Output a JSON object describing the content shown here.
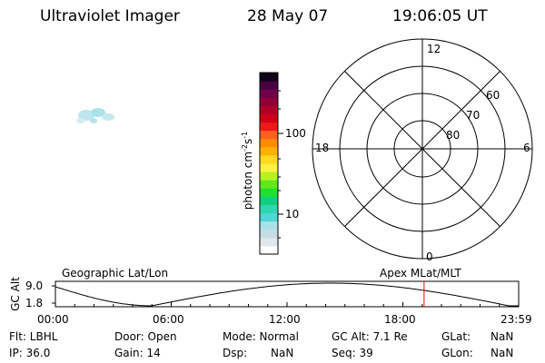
{
  "header": {
    "title": "Ultraviolet Imager",
    "date": "28 May 07",
    "time": "19:06:05 UT"
  },
  "colorbar": {
    "label": "photon cm⁻²s⁻¹",
    "label_base": "photon cm",
    "label_exp1": "-2",
    "label_mid": "s",
    "label_exp2": "-1",
    "tick_100": "100",
    "tick_10": "10",
    "colors": [
      "#ffffff",
      "#dfe8ee",
      "#c8dce4",
      "#a9e1ea",
      "#4fd6d6",
      "#2fd6b0",
      "#10d080",
      "#1ee030",
      "#60e818",
      "#b8f020",
      "#fff040",
      "#ffd820",
      "#ffb000",
      "#ff8c00",
      "#ff6020",
      "#f01818",
      "#d00018",
      "#b00028",
      "#900038",
      "#70004c",
      "#4c0044",
      "#100018"
    ]
  },
  "polar": {
    "label_12": "12",
    "label_18": "18",
    "label_6": "6",
    "label_0": "0",
    "label_60": "60",
    "label_70": "70",
    "label_80": "80"
  },
  "track": {
    "left_title": "Geographic Lat/Lon",
    "right_title": "Apex MLat/MLT",
    "y_axis_label": "GC Alt",
    "y_top": "9.0",
    "y_bottom": "1.8",
    "x_ticks": [
      "00:00",
      "06:00",
      "12:00",
      "18:00",
      "23:59"
    ],
    "marker_hours": 19.1,
    "marker_color": "#ff0000"
  },
  "info": {
    "flt": "Flt: LBHL",
    "ip": "IP: 36.0",
    "door": "Door: Open",
    "gain": "Gain: 14",
    "mode": "Mode: Normal",
    "dsp_label": "Dsp:",
    "dsp_value": "NaN",
    "gcalt": "GC Alt: 7.1 Re",
    "seq": "Seq: 39",
    "glat_label": "GLat:",
    "glat_value": "NaN",
    "glon_label": "GLon:",
    "glon_value": "NaN"
  }
}
